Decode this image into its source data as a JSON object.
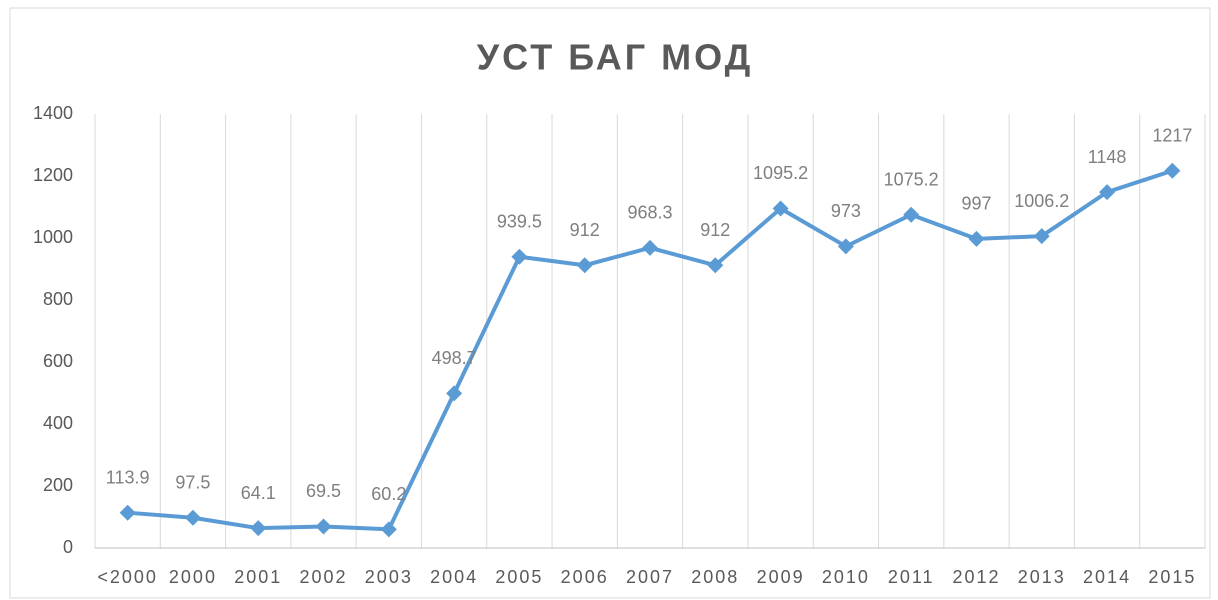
{
  "chart_data": {
    "type": "line",
    "title": "УСТ БАГ МОД",
    "categories": [
      "<2000",
      "2000",
      "2001",
      "2002",
      "2003",
      "2004",
      "2005",
      "2006",
      "2007",
      "2008",
      "2009",
      "2010",
      "2011",
      "2012",
      "2013",
      "2014",
      "2015"
    ],
    "values": [
      113.9,
      97.5,
      64.1,
      69.5,
      60.2,
      498.7,
      939.5,
      912,
      968.3,
      912,
      1095.2,
      973,
      1075.2,
      997,
      1006.2,
      1148,
      1217
    ],
    "color": "#5b9bd5",
    "ylim": [
      0,
      1400
    ],
    "yticks": [
      0,
      200,
      400,
      600,
      800,
      1000,
      1200,
      1400
    ],
    "grid": "vertical",
    "data_labels": true
  }
}
